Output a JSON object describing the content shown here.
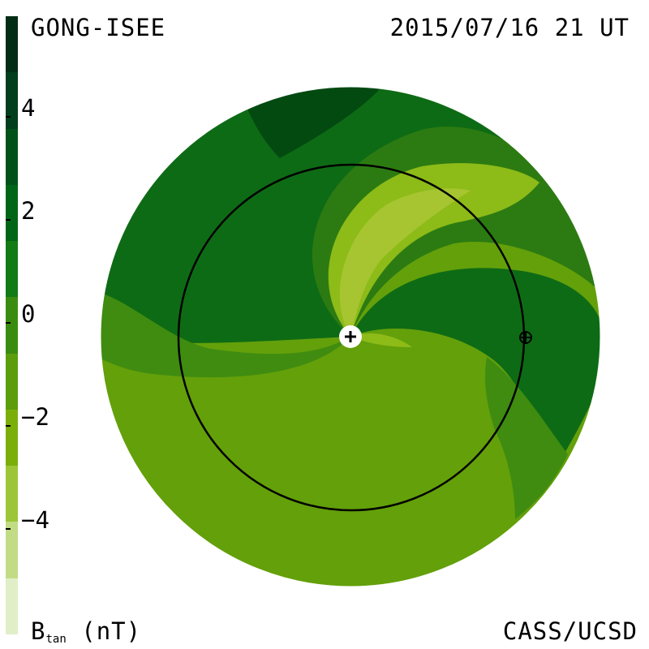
{
  "header": {
    "title_left": "GONG-ISEE",
    "title_right": "2015/07/16 21 UT"
  },
  "footer": {
    "credit": "CASS/UCSD",
    "colorbar_label_main": "B",
    "colorbar_label_sub": "tan",
    "colorbar_unit": "(nT)"
  },
  "colorbar": {
    "tick_labels": [
      "4",
      "2",
      "0",
      "−2",
      "−4"
    ],
    "colors": [
      "#002d14",
      "#003e1c",
      "#005219",
      "#006617",
      "#117b16",
      "#3a8c10",
      "#5c9d0c",
      "#7aaf0a",
      "#9cc638",
      "#c2dc85",
      "#e0efc8"
    ]
  },
  "map": {
    "colors": {
      "outer": "#63a00a",
      "dark_north": "#0e6b15",
      "deepest": "#034a11",
      "mid": "#3f8c10",
      "band": "#2c7b12",
      "light": "#8dbb18",
      "lightest": "#a6c530",
      "circle": "#000000"
    },
    "markers": [
      "sun-marker",
      "earth-marker"
    ]
  }
}
